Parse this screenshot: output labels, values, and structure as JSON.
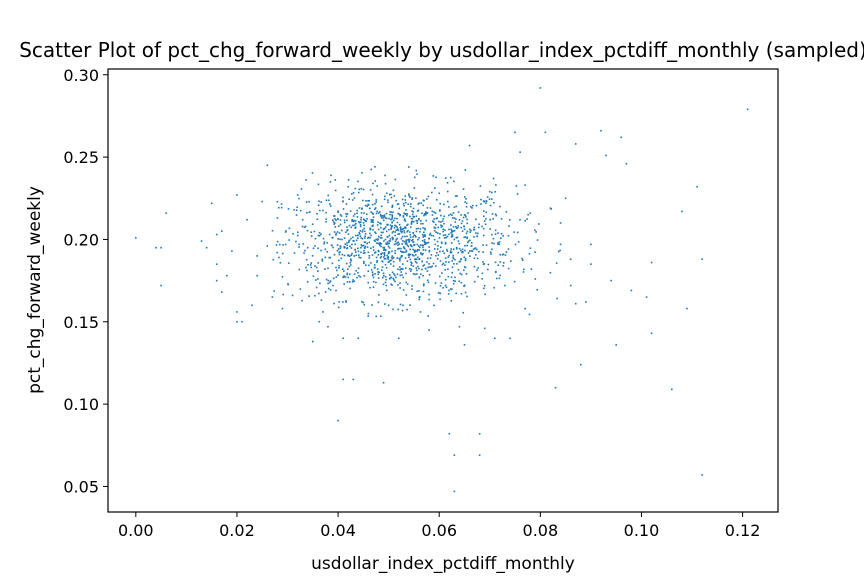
{
  "chart_data": {
    "type": "scatter",
    "title": "Scatter Plot of pct_chg_forward_weekly by usdollar_index_pctdiff_monthly (sampled)",
    "xlabel": "usdollar_index_pctdiff_monthly",
    "ylabel": "pct_chg_forward_weekly",
    "xlim": [
      -0.0055,
      0.127
    ],
    "ylim": [
      0.0345,
      0.3035
    ],
    "x_ticks": [
      0.0,
      0.02,
      0.04,
      0.06,
      0.08,
      0.1,
      0.12
    ],
    "x_tick_labels": [
      "0.00",
      "0.02",
      "0.04",
      "0.06",
      "0.08",
      "0.10",
      "0.12"
    ],
    "y_ticks": [
      0.05,
      0.1,
      0.15,
      0.2,
      0.25,
      0.3
    ],
    "y_tick_labels": [
      "0.05",
      "0.10",
      "0.15",
      "0.20",
      "0.25",
      "0.30"
    ],
    "grid": false,
    "marker_color": "#1f77b4",
    "points": [
      [
        0.0,
        0.201
      ],
      [
        0.004,
        0.195
      ],
      [
        0.005,
        0.195
      ],
      [
        0.005,
        0.172
      ],
      [
        0.006,
        0.216
      ],
      [
        0.013,
        0.199
      ],
      [
        0.014,
        0.195
      ],
      [
        0.015,
        0.222
      ],
      [
        0.016,
        0.185
      ],
      [
        0.016,
        0.203
      ],
      [
        0.016,
        0.175
      ],
      [
        0.017,
        0.168
      ],
      [
        0.017,
        0.205
      ],
      [
        0.018,
        0.178
      ],
      [
        0.019,
        0.193
      ],
      [
        0.02,
        0.15
      ],
      [
        0.02,
        0.227
      ],
      [
        0.02,
        0.156
      ],
      [
        0.021,
        0.15
      ],
      [
        0.022,
        0.212
      ],
      [
        0.023,
        0.16
      ],
      [
        0.024,
        0.19
      ],
      [
        0.024,
        0.178
      ],
      [
        0.025,
        0.223
      ],
      [
        0.026,
        0.245
      ],
      [
        0.026,
        0.196
      ],
      [
        0.027,
        0.165
      ],
      [
        0.028,
        0.213
      ],
      [
        0.029,
        0.158
      ],
      [
        0.031,
        0.166
      ],
      [
        0.032,
        0.227
      ],
      [
        0.033,
        0.212
      ],
      [
        0.034,
        0.195
      ],
      [
        0.035,
        0.138
      ],
      [
        0.036,
        0.176
      ],
      [
        0.037,
        0.156
      ],
      [
        0.038,
        0.147
      ],
      [
        0.039,
        0.172
      ],
      [
        0.04,
        0.09
      ],
      [
        0.041,
        0.115
      ],
      [
        0.041,
        0.14
      ],
      [
        0.042,
        0.232
      ],
      [
        0.043,
        0.115
      ],
      [
        0.044,
        0.14
      ],
      [
        0.046,
        0.155
      ],
      [
        0.047,
        0.171
      ],
      [
        0.049,
        0.113
      ],
      [
        0.05,
        0.16
      ],
      [
        0.052,
        0.14
      ],
      [
        0.054,
        0.244
      ],
      [
        0.056,
        0.222
      ],
      [
        0.058,
        0.145
      ],
      [
        0.06,
        0.228
      ],
      [
        0.062,
        0.082
      ],
      [
        0.063,
        0.047
      ],
      [
        0.063,
        0.069
      ],
      [
        0.064,
        0.147
      ],
      [
        0.065,
        0.136
      ],
      [
        0.066,
        0.257
      ],
      [
        0.068,
        0.082
      ],
      [
        0.068,
        0.069
      ],
      [
        0.069,
        0.146
      ],
      [
        0.07,
        0.229
      ],
      [
        0.071,
        0.14
      ],
      [
        0.072,
        0.22
      ],
      [
        0.074,
        0.14
      ],
      [
        0.075,
        0.265
      ],
      [
        0.076,
        0.253
      ],
      [
        0.077,
        0.158
      ],
      [
        0.078,
        0.216
      ],
      [
        0.079,
        0.176
      ],
      [
        0.08,
        0.292
      ],
      [
        0.081,
        0.265
      ],
      [
        0.082,
        0.219
      ],
      [
        0.083,
        0.11
      ],
      [
        0.084,
        0.21
      ],
      [
        0.085,
        0.225
      ],
      [
        0.086,
        0.188
      ],
      [
        0.087,
        0.161
      ],
      [
        0.087,
        0.258
      ],
      [
        0.088,
        0.124
      ],
      [
        0.089,
        0.162
      ],
      [
        0.09,
        0.197
      ],
      [
        0.092,
        0.266
      ],
      [
        0.093,
        0.251
      ],
      [
        0.094,
        0.175
      ],
      [
        0.095,
        0.136
      ],
      [
        0.096,
        0.262
      ],
      [
        0.097,
        0.246
      ],
      [
        0.098,
        0.169
      ],
      [
        0.101,
        0.165
      ],
      [
        0.102,
        0.143
      ],
      [
        0.102,
        0.186
      ],
      [
        0.106,
        0.109
      ],
      [
        0.108,
        0.217
      ],
      [
        0.109,
        0.158
      ],
      [
        0.111,
        0.232
      ],
      [
        0.112,
        0.188
      ],
      [
        0.112,
        0.057
      ],
      [
        0.121,
        0.279
      ],
      [
        0.077,
        0.233
      ],
      [
        0.073,
        0.172
      ],
      [
        0.084,
        0.197
      ],
      [
        0.09,
        0.185
      ],
      [
        0.086,
        0.172
      ]
    ],
    "cluster": {
      "count": 1400,
      "x_mean": 0.052,
      "x_sd": 0.0115,
      "y_mean": 0.198,
      "y_sd": 0.017,
      "x_range": [
        0.027,
        0.085
      ],
      "y_range": [
        0.15,
        0.245
      ]
    }
  }
}
